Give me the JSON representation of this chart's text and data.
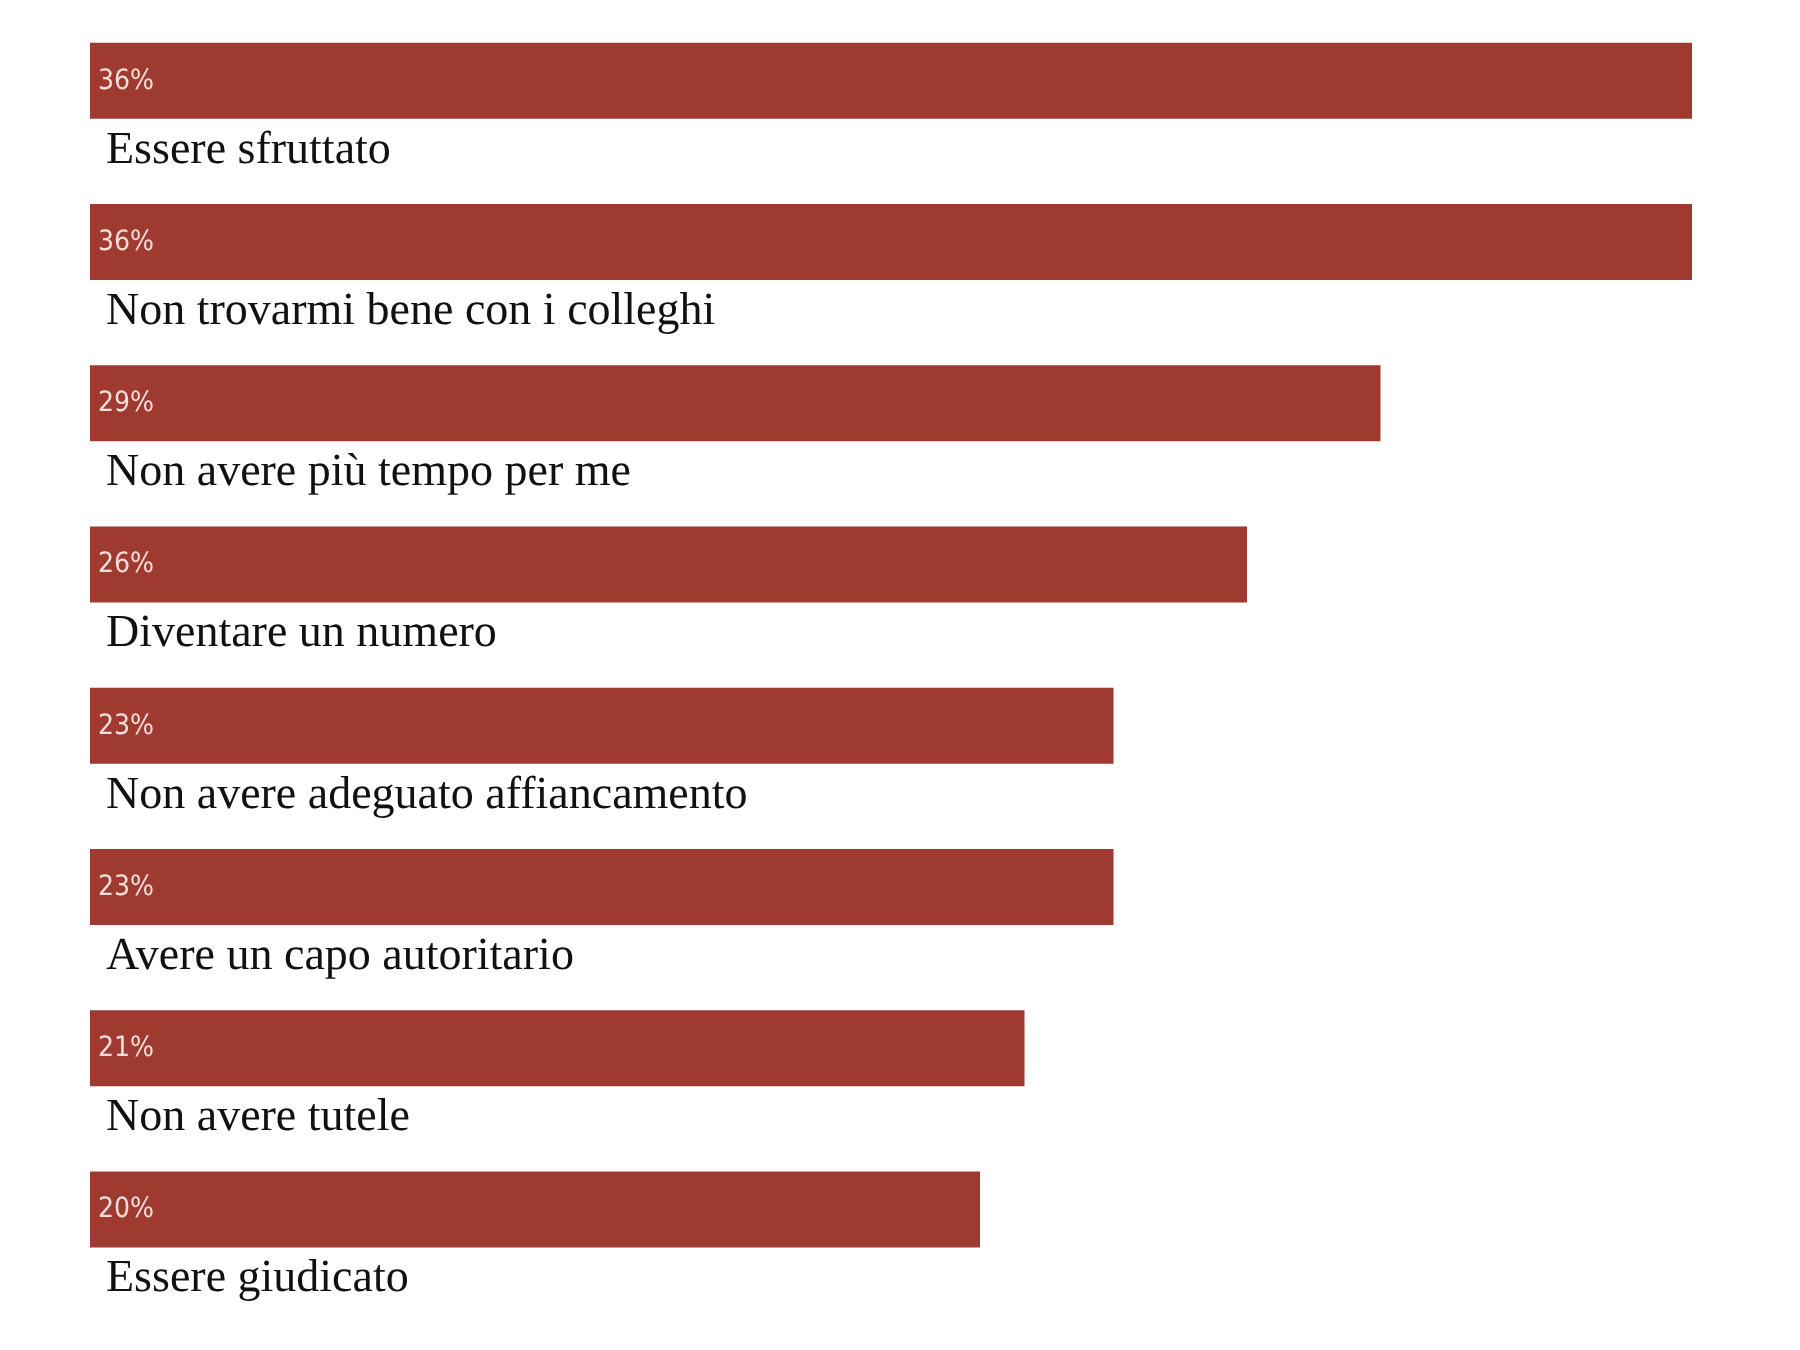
{
  "chart_data": {
    "type": "bar",
    "orientation": "horizontal",
    "categories": [
      "Essere sfruttato",
      "Non trovarmi bene con i colleghi",
      "Non avere più tempo per me",
      "Diventare un numero",
      "Non avere adeguato affiancamento",
      "Avere un capo autoritario",
      "Non avere tutele",
      "Essere giudicato"
    ],
    "values": [
      36,
      36,
      29,
      26,
      23,
      23,
      21,
      20
    ],
    "value_labels": [
      "36%",
      "36%",
      "29%",
      "26%",
      "23%",
      "23%",
      "21%",
      "20%"
    ],
    "color": "#9e3a30",
    "tick_labels": "y"
  }
}
